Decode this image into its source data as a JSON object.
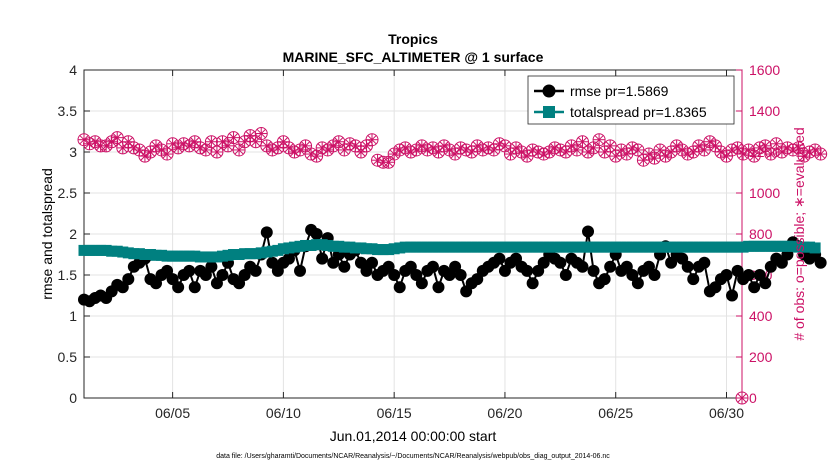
{
  "chart_data": {
    "type": "line",
    "title": "Tropics",
    "subtitle": "MARINE_SFC_ALTIMETER @ 1 surface",
    "xlabel": "Jun.01,2014 00:00:00 start",
    "ylabel_left": "rmse and totalspread",
    "ylabel_right": "# of obs: o=possible; ∗=evaluated",
    "footnote": "data file: /Users/gharamti/Documents/NCAR/Reanalysis/~/Documents/NCAR/Reanalysis/webpub/obs_diag_output_2014-06.nc",
    "xlim": [
      1,
      30.7
    ],
    "ylim_left": [
      0,
      4
    ],
    "ylim_right": [
      0,
      1600
    ],
    "x_ticks": [
      {
        "value": 5,
        "label": "06/05"
      },
      {
        "value": 10,
        "label": "06/10"
      },
      {
        "value": 15,
        "label": "06/15"
      },
      {
        "value": 20,
        "label": "06/20"
      },
      {
        "value": 25,
        "label": "06/25"
      },
      {
        "value": 30,
        "label": "06/30"
      }
    ],
    "y_ticks_left": [
      "0",
      "0.5",
      "1",
      "1.5",
      "2",
      "2.5",
      "3",
      "3.5",
      "4"
    ],
    "y_tick_values_left": [
      0,
      0.5,
      1,
      1.5,
      2,
      2.5,
      3,
      3.5,
      4
    ],
    "y_ticks_right": [
      "0",
      "200",
      "400",
      "600",
      "800",
      "1000",
      "1200",
      "1400",
      "1600"
    ],
    "y_tick_values_right": [
      0,
      200,
      400,
      600,
      800,
      1000,
      1200,
      1400,
      1600
    ],
    "x_start": 1.0,
    "x_step": 0.25,
    "legend": {
      "position": "top-right",
      "entries": [
        {
          "label": "rmse pr=1.5869",
          "marker": "circle",
          "color": "#000000"
        },
        {
          "label": "totalspread pr=1.8365",
          "marker": "square",
          "color": "#008080"
        }
      ]
    },
    "series": [
      {
        "name": "rmse",
        "axis": "left",
        "color": "#000000",
        "values": [
          1.2,
          1.18,
          1.22,
          1.25,
          1.22,
          1.3,
          1.38,
          1.35,
          1.45,
          1.6,
          1.65,
          1.7,
          1.45,
          1.4,
          1.5,
          1.55,
          1.45,
          1.35,
          1.5,
          1.55,
          1.35,
          1.55,
          1.5,
          1.6,
          1.4,
          1.5,
          1.65,
          1.45,
          1.4,
          1.5,
          1.6,
          1.55,
          1.75,
          2.02,
          1.65,
          1.55,
          1.65,
          1.7,
          1.8,
          1.55,
          1.85,
          2.05,
          2.0,
          1.7,
          1.95,
          1.65,
          1.75,
          1.6,
          1.75,
          1.8,
          1.65,
          1.55,
          1.65,
          1.5,
          1.55,
          1.6,
          1.5,
          1.35,
          1.55,
          1.6,
          1.5,
          1.4,
          1.55,
          1.6,
          1.35,
          1.55,
          1.5,
          1.6,
          1.5,
          1.3,
          1.4,
          1.45,
          1.55,
          1.6,
          1.65,
          1.7,
          1.55,
          1.65,
          1.7,
          1.6,
          1.55,
          1.4,
          1.55,
          1.65,
          1.75,
          1.7,
          1.65,
          1.5,
          1.7,
          1.65,
          1.6,
          2.03,
          1.55,
          1.4,
          1.45,
          1.6,
          1.75,
          1.55,
          1.6,
          1.5,
          1.4,
          1.55,
          1.6,
          1.5,
          1.75,
          1.85,
          1.65,
          1.75,
          1.7,
          1.6,
          1.45,
          1.6,
          1.65,
          1.3,
          1.35,
          1.45,
          1.5,
          1.25,
          1.55,
          1.45,
          1.5,
          1.35,
          1.5,
          1.4,
          1.6,
          1.7,
          1.65,
          1.75,
          1.9,
          1.85,
          1.75,
          1.7,
          1.75,
          1.65
        ]
      },
      {
        "name": "totalspread",
        "axis": "left",
        "color": "#008080",
        "values": [
          1.8,
          1.8,
          1.8,
          1.8,
          1.8,
          1.79,
          1.79,
          1.78,
          1.77,
          1.76,
          1.76,
          1.75,
          1.75,
          1.74,
          1.74,
          1.73,
          1.73,
          1.73,
          1.73,
          1.73,
          1.73,
          1.72,
          1.72,
          1.72,
          1.72,
          1.73,
          1.74,
          1.75,
          1.75,
          1.76,
          1.76,
          1.76,
          1.77,
          1.78,
          1.79,
          1.8,
          1.82,
          1.83,
          1.84,
          1.85,
          1.86,
          1.86,
          1.87,
          1.87,
          1.86,
          1.85,
          1.85,
          1.84,
          1.84,
          1.83,
          1.83,
          1.82,
          1.82,
          1.81,
          1.81,
          1.81,
          1.82,
          1.83,
          1.84,
          1.84,
          1.84,
          1.84,
          1.84,
          1.84,
          1.84,
          1.84,
          1.84,
          1.84,
          1.84,
          1.84,
          1.84,
          1.84,
          1.84,
          1.84,
          1.84,
          1.84,
          1.84,
          1.84,
          1.84,
          1.84,
          1.84,
          1.84,
          1.84,
          1.84,
          1.84,
          1.84,
          1.84,
          1.84,
          1.84,
          1.84,
          1.84,
          1.84,
          1.84,
          1.84,
          1.84,
          1.84,
          1.84,
          1.84,
          1.84,
          1.84,
          1.84,
          1.84,
          1.84,
          1.84,
          1.84,
          1.84,
          1.84,
          1.84,
          1.84,
          1.84,
          1.84,
          1.84,
          1.84,
          1.84,
          1.84,
          1.84,
          1.84,
          1.84,
          1.84,
          1.84,
          1.85,
          1.85,
          1.85,
          1.85,
          1.85,
          1.85,
          1.85,
          1.85,
          1.85,
          1.84,
          1.84,
          1.84,
          1.83
        ]
      },
      {
        "name": "obs_evaluated",
        "axis": "right",
        "color": "#cc1166",
        "values": [
          1260,
          1240,
          1250,
          1230,
          1230,
          1250,
          1270,
          1220,
          1250,
          1220,
          1210,
          1180,
          1200,
          1230,
          1210,
          1190,
          1240,
          1220,
          1240,
          1230,
          1250,
          1220,
          1210,
          1250,
          1200,
          1250,
          1230,
          1270,
          1210,
          1250,
          1280,
          1250,
          1290,
          1230,
          1210,
          1220,
          1250,
          1220,
          1200,
          1210,
          1230,
          1190,
          1180,
          1220,
          1210,
          1230,
          1250,
          1210,
          1240,
          1230,
          1200,
          1230,
          1260,
          1160,
          1150,
          1150,
          1190,
          1210,
          1220,
          1200,
          1210,
          1230,
          1210,
          1220,
          1200,
          1230,
          1210,
          1190,
          1220,
          1210,
          1200,
          1230,
          1210,
          1220,
          1210,
          1240,
          1230,
          1190,
          1220,
          1200,
          1180,
          1210,
          1200,
          1190,
          1200,
          1220,
          1210,
          1200,
          1230,
          1210,
          1250,
          1200,
          1220,
          1260,
          1200,
          1230,
          1180,
          1210,
          1190,
          1220,
          1210,
          1160,
          1190,
          1170,
          1210,
          1180,
          1200,
          1230,
          1210,
          1190,
          1200,
          1230,
          1210,
          1250,
          1230,
          1200,
          1180,
          1210,
          1220,
          1190,
          1210,
          1180,
          1220,
          1230,
          1190,
          1240,
          1200,
          1220,
          1210,
          1220,
          1180,
          1200,
          1210,
          1190
        ]
      }
    ]
  }
}
